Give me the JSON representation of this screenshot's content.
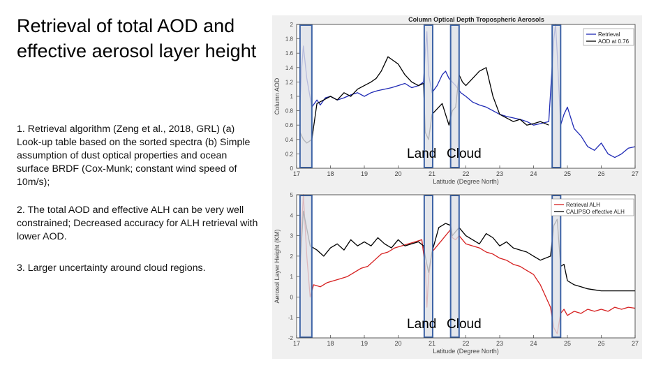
{
  "slide": {
    "title": "Retrieval of total AOD and effective aerosol layer height",
    "points": [
      "1. Retrieval algorithm (Zeng et al., 2018, GRL) (a) Look-up table based on the sorted spectra (b) Simple assumption of dust optical properties and ocean surface BRDF (Cox-Munk; constant wind speed of 10m/s);",
      "2. The total AOD and effective ALH can be very well constrained; Decreased accuracy for ALH retrieval with lower AOD.",
      "3. Larger uncertainty around cloud regions."
    ]
  },
  "overlay_labels": {
    "land": "Land",
    "cloud": "Cloud"
  },
  "colors": {
    "retrieval_aod": "#1f2ab5",
    "retrieval_alh": "#d62020",
    "reference": "#000000",
    "cloud_box_fill": "#dde0e6",
    "cloud_box_stroke": "#3d63a6"
  },
  "chart_data": [
    {
      "type": "line",
      "title": "Column Optical Depth Tropospheric Aerosols",
      "xlabel": "Latitude (Degree North)",
      "ylabel": "Column AOD",
      "xlim": [
        17,
        27
      ],
      "ylim": [
        0,
        2
      ],
      "xticks": [
        17,
        18,
        19,
        20,
        21,
        22,
        23,
        24,
        25,
        26,
        27
      ],
      "yticks": [
        0,
        0.2,
        0.4,
        0.6,
        0.8,
        1,
        1.2,
        1.4,
        1.6,
        1.8,
        2
      ],
      "ytick_labels": [
        "0",
        "0.2",
        "0.4",
        "0.6",
        "0.8",
        "1",
        "1.2",
        "1.4",
        "1.6",
        "1.8",
        "2"
      ],
      "legend_position": "top-right",
      "highlight_ranges": [
        [
          17.1,
          17.45
        ],
        [
          20.77,
          21.02
        ],
        [
          21.55,
          21.8
        ],
        [
          24.55,
          24.8
        ]
      ],
      "series": [
        {
          "name": "Retrieval",
          "x": [
            17.1,
            17.15,
            17.2,
            17.3,
            17.45,
            17.6,
            17.7,
            17.85,
            18.0,
            18.2,
            18.4,
            18.6,
            18.8,
            19.0,
            19.2,
            19.4,
            19.6,
            19.8,
            20.0,
            20.2,
            20.4,
            20.6,
            20.75,
            20.8,
            20.85,
            20.9,
            21.0,
            21.15,
            21.3,
            21.4,
            21.5,
            21.6,
            21.7,
            21.85,
            22.0,
            22.2,
            22.4,
            22.6,
            22.8,
            23.0,
            23.2,
            23.4,
            23.6,
            23.8,
            24.0,
            24.2,
            24.45,
            24.6,
            24.65,
            24.7,
            24.8,
            24.9,
            25.0,
            25.2,
            25.4,
            25.6,
            25.8,
            26.0,
            26.2,
            26.4,
            26.6,
            26.8,
            27.0
          ],
          "y": [
            0.9,
            1.4,
            1.7,
            1.25,
            0.85,
            0.95,
            0.88,
            0.98,
            1.0,
            0.95,
            0.98,
            1.02,
            1.05,
            1.0,
            1.05,
            1.08,
            1.1,
            1.12,
            1.15,
            1.18,
            1.12,
            1.15,
            1.2,
            1.6,
            1.9,
            1.3,
            1.05,
            1.15,
            1.3,
            1.35,
            1.25,
            1.2,
            1.15,
            1.05,
            1.0,
            0.92,
            0.88,
            0.85,
            0.8,
            0.75,
            0.72,
            0.7,
            0.68,
            0.65,
            0.6,
            0.62,
            0.65,
            1.8,
            2.0,
            1.6,
            0.6,
            0.75,
            0.85,
            0.55,
            0.45,
            0.3,
            0.25,
            0.35,
            0.2,
            0.15,
            0.2,
            0.28,
            0.3
          ]
        },
        {
          "name": "AOD at 0.76",
          "x": [
            17.1,
            17.2,
            17.3,
            17.45,
            17.6,
            17.8,
            18.0,
            18.2,
            18.4,
            18.6,
            18.8,
            19.0,
            19.2,
            19.35,
            19.5,
            19.6,
            19.7,
            19.85,
            20.0,
            20.2,
            20.4,
            20.6,
            20.75,
            20.8,
            20.9,
            21.0,
            21.1,
            21.2,
            21.3,
            21.4,
            21.5,
            21.6,
            21.7,
            21.8,
            21.9,
            22.0,
            22.2,
            22.4,
            22.6,
            22.8,
            23.0,
            23.2,
            23.4,
            23.6,
            23.8,
            24.0,
            24.2,
            24.45
          ],
          "y": [
            0.5,
            0.4,
            0.35,
            0.4,
            0.9,
            0.95,
            1.0,
            0.95,
            1.05,
            1.0,
            1.1,
            1.15,
            1.2,
            1.25,
            1.35,
            1.45,
            1.55,
            1.5,
            1.45,
            1.3,
            1.2,
            1.15,
            1.18,
            0.5,
            0.4,
            0.75,
            0.8,
            0.85,
            0.9,
            0.75,
            0.6,
            0.8,
            0.85,
            1.3,
            1.2,
            1.15,
            1.25,
            1.35,
            1.4,
            1.0,
            0.75,
            0.7,
            0.65,
            0.68,
            0.6,
            0.62,
            0.65,
            0.6
          ]
        }
      ]
    },
    {
      "type": "line",
      "title": "",
      "xlabel": "Latitude (Degree North)",
      "ylabel": "Aerosol Layer Height (KM)",
      "xlim": [
        17,
        27
      ],
      "ylim": [
        -2,
        5
      ],
      "xticks": [
        17,
        18,
        19,
        20,
        21,
        22,
        23,
        24,
        25,
        26,
        27
      ],
      "yticks": [
        -2,
        -1,
        0,
        1,
        2,
        3,
        4,
        5
      ],
      "ytick_labels": [
        "-2",
        "-1",
        "0",
        "1",
        "2",
        "3",
        "4",
        "5"
      ],
      "legend_position": "top-right",
      "highlight_ranges": [
        [
          17.1,
          17.45
        ],
        [
          20.77,
          21.02
        ],
        [
          21.55,
          21.8
        ],
        [
          24.55,
          24.8
        ]
      ],
      "series": [
        {
          "name": "Retrieval ALH",
          "x": [
            17.1,
            17.15,
            17.2,
            17.3,
            17.4,
            17.5,
            17.7,
            17.9,
            18.1,
            18.3,
            18.5,
            18.7,
            18.9,
            19.1,
            19.3,
            19.5,
            19.7,
            19.9,
            20.1,
            20.3,
            20.5,
            20.7,
            20.8,
            20.85,
            20.9,
            21.0,
            21.15,
            21.3,
            21.45,
            21.55,
            21.6,
            21.7,
            21.8,
            22.0,
            22.2,
            22.4,
            22.6,
            22.8,
            23.0,
            23.2,
            23.4,
            23.6,
            23.8,
            24.0,
            24.2,
            24.5,
            24.6,
            24.7,
            24.8,
            24.9,
            25.0,
            25.2,
            25.4,
            25.6,
            25.8,
            26.0,
            26.2,
            26.4,
            26.6,
            26.8,
            27.0
          ],
          "y": [
            0.8,
            3.5,
            5.0,
            2.0,
            0.0,
            0.6,
            0.5,
            0.7,
            0.8,
            0.9,
            1.0,
            1.2,
            1.4,
            1.5,
            1.8,
            2.1,
            2.2,
            2.4,
            2.5,
            2.6,
            2.7,
            2.8,
            1.5,
            -0.5,
            1.0,
            2.2,
            2.5,
            2.8,
            3.1,
            3.3,
            2.9,
            2.8,
            3.0,
            2.6,
            2.5,
            2.4,
            2.2,
            2.1,
            1.9,
            1.8,
            1.6,
            1.5,
            1.3,
            1.1,
            0.6,
            -0.5,
            -1.5,
            -1.8,
            -0.8,
            -0.6,
            -0.9,
            -0.7,
            -0.8,
            -0.6,
            -0.7,
            -0.6,
            -0.7,
            -0.5,
            -0.6,
            -0.5,
            -0.55
          ]
        },
        {
          "name": "CALIPSO effective ALH",
          "x": [
            17.1,
            17.2,
            17.4,
            17.6,
            17.8,
            18.0,
            18.2,
            18.4,
            18.6,
            18.8,
            19.0,
            19.2,
            19.4,
            19.6,
            19.8,
            20.0,
            20.2,
            20.4,
            20.6,
            20.75,
            20.8,
            20.9,
            21.0,
            21.2,
            21.4,
            21.55,
            21.6,
            21.7,
            21.8,
            22.0,
            22.2,
            22.4,
            22.6,
            22.8,
            23.0,
            23.2,
            23.4,
            23.6,
            23.8,
            24.0,
            24.2,
            24.5,
            24.6,
            24.7,
            24.8,
            24.9,
            25.0,
            25.2,
            25.4,
            25.6,
            25.8,
            26.0,
            26.2,
            26.4,
            26.6,
            26.8,
            27.0
          ],
          "y": [
            1.5,
            4.2,
            2.5,
            2.3,
            2.0,
            2.4,
            2.6,
            2.3,
            2.8,
            2.5,
            2.7,
            2.5,
            2.9,
            2.6,
            2.4,
            2.8,
            2.5,
            2.6,
            2.7,
            2.5,
            2.0,
            1.2,
            2.2,
            3.4,
            3.6,
            3.5,
            3.0,
            3.2,
            3.4,
            3.0,
            2.8,
            2.6,
            3.1,
            2.9,
            2.5,
            2.7,
            2.4,
            2.3,
            2.2,
            2.0,
            1.8,
            2.0,
            3.5,
            3.8,
            1.5,
            1.6,
            0.8,
            0.6,
            0.5,
            0.4,
            0.35,
            0.3,
            0.3,
            0.3,
            0.3,
            0.3,
            0.3
          ]
        }
      ]
    }
  ]
}
